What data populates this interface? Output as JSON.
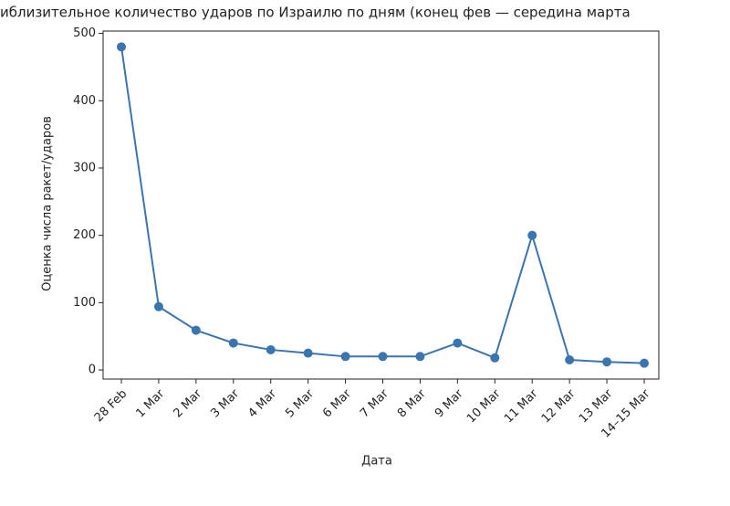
{
  "chart_data": {
    "type": "line",
    "title": "иблизительное количество ударов по Израилю по дням (конец фев — середина марта",
    "x_label": "Дата",
    "y_label": "Оценка числа ракет/ударов",
    "categories": [
      "28 Feb",
      "1 Mar",
      "2 Mar",
      "3 Mar",
      "4 Mar",
      "5 Mar",
      "6 Mar",
      "7 Mar",
      "8 Mar",
      "9 Mar",
      "10 Mar",
      "11 Mar",
      "12 Mar",
      "13 Mar",
      "14–15 Mar"
    ],
    "values": [
      480,
      94,
      59,
      40,
      30,
      25,
      20,
      20,
      20,
      40,
      18,
      200,
      15,
      12,
      10
    ],
    "color": "#3b75af",
    "ylim": [
      -13.5,
      503.5
    ],
    "yticks": [
      0,
      100,
      200,
      300,
      400,
      500
    ],
    "grid": false
  }
}
